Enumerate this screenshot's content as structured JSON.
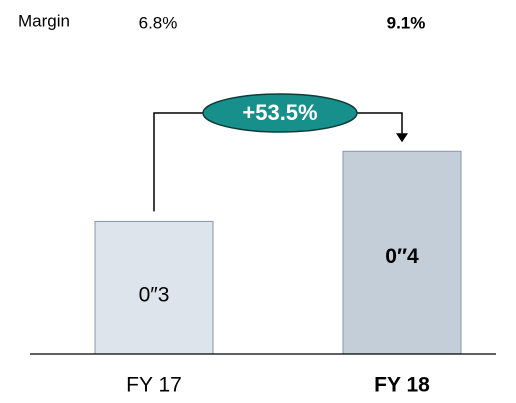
{
  "chart_data": {
    "type": "bar",
    "margin_label": "Margin",
    "margins": [
      "6.8%",
      "9.1%"
    ],
    "categories": [
      "FY 17",
      "FY 18"
    ],
    "values": [
      0.3,
      0.4
    ],
    "value_labels": [
      "0″3",
      "0″4"
    ],
    "colors": [
      "#dde4ec",
      "#c3ced8"
    ],
    "ylim": [
      0.111,
      0.6
    ],
    "growth_label": "+53.5%",
    "growth_color": "#17908c"
  }
}
